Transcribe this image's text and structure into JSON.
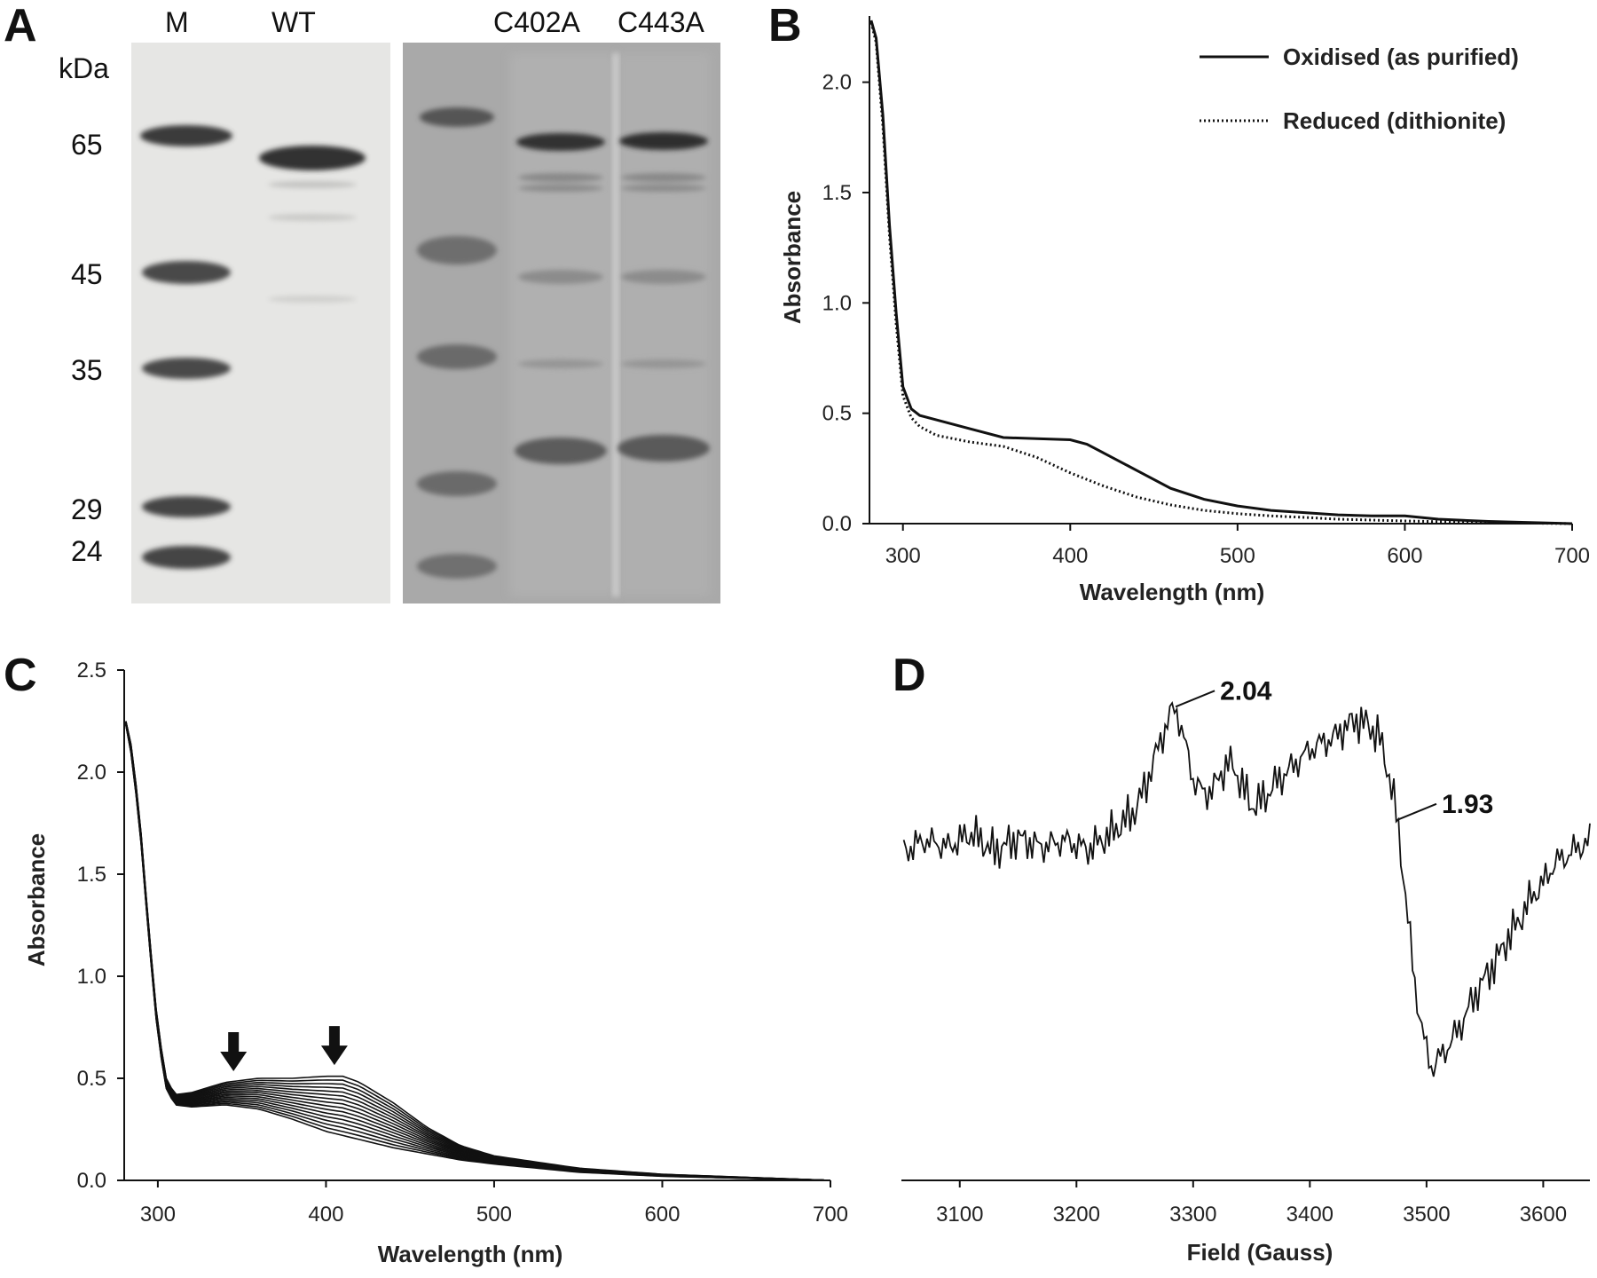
{
  "panel_letters": [
    "A",
    "B",
    "C",
    "D"
  ],
  "gel": {
    "mw_unit": "kDa",
    "lanes": [
      "M",
      "WT",
      "C402A",
      "C443A"
    ],
    "marker_kda": [
      65,
      45,
      35,
      29,
      24
    ]
  },
  "colors": {
    "ink": "#111111",
    "gel_left_bg": "#e6e6e4",
    "gel_right_bg": "#a9a9a9",
    "band_dark": "#3a3a3a"
  },
  "chart_data": [
    {
      "panel": "B",
      "type": "line",
      "xlabel": "Wavelength (nm)",
      "ylabel": "Absorbance",
      "xlim": [
        280,
        700
      ],
      "ylim": [
        0,
        2.3
      ],
      "xticks": [
        300,
        400,
        500,
        600,
        700
      ],
      "yticks": [
        0.0,
        0.5,
        1.0,
        1.5,
        2.0
      ],
      "legend_position": "top-right",
      "series": [
        {
          "name": "Oxidised (as purified)",
          "style": "solid",
          "x": [
            281,
            284,
            288,
            292,
            296,
            300,
            305,
            310,
            320,
            340,
            360,
            380,
            400,
            410,
            420,
            440,
            460,
            480,
            500,
            520,
            540,
            560,
            580,
            600,
            620,
            650,
            700
          ],
          "y": [
            2.28,
            2.2,
            1.85,
            1.35,
            0.95,
            0.62,
            0.52,
            0.49,
            0.47,
            0.43,
            0.39,
            0.385,
            0.38,
            0.36,
            0.32,
            0.24,
            0.16,
            0.11,
            0.08,
            0.06,
            0.05,
            0.04,
            0.035,
            0.035,
            0.02,
            0.01,
            0.0
          ]
        },
        {
          "name": "Reduced (dithionite)",
          "style": "dotted",
          "x": [
            281,
            284,
            288,
            292,
            296,
            300,
            305,
            310,
            320,
            340,
            360,
            380,
            400,
            420,
            440,
            460,
            480,
            500,
            520,
            540,
            560,
            600,
            650,
            700
          ],
          "y": [
            2.27,
            2.18,
            1.8,
            1.3,
            0.9,
            0.58,
            0.48,
            0.44,
            0.4,
            0.37,
            0.35,
            0.3,
            0.23,
            0.17,
            0.12,
            0.085,
            0.06,
            0.045,
            0.035,
            0.028,
            0.02,
            0.012,
            0.005,
            0.0
          ]
        }
      ]
    },
    {
      "panel": "C",
      "type": "line",
      "xlabel": "Wavelength (nm)",
      "ylabel": "Absorbance",
      "xlim": [
        280,
        700
      ],
      "ylim": [
        0,
        2.5
      ],
      "xticks": [
        300,
        400,
        500,
        600,
        700
      ],
      "yticks": [
        0.0,
        0.5,
        1.0,
        1.5,
        2.0,
        2.5
      ],
      "annotations": [
        {
          "type": "arrow-down",
          "x": 345,
          "y": 0.5
        },
        {
          "type": "arrow-down",
          "x": 405,
          "y": 0.53
        }
      ],
      "series_count": 16,
      "series_description": "family of spectra between first (oxidised) and last (reduced) traces",
      "first": {
        "x": [
          281,
          285,
          290,
          295,
          300,
          305,
          310,
          320,
          340,
          360,
          380,
          400,
          410,
          420,
          440,
          460,
          480,
          500,
          550,
          600,
          650,
          700
        ],
        "y": [
          2.25,
          2.1,
          1.7,
          1.2,
          0.75,
          0.5,
          0.42,
          0.43,
          0.48,
          0.5,
          0.5,
          0.51,
          0.51,
          0.48,
          0.38,
          0.26,
          0.17,
          0.12,
          0.06,
          0.03,
          0.015,
          0.0
        ]
      },
      "last": {
        "x": [
          281,
          285,
          290,
          295,
          300,
          305,
          310,
          320,
          340,
          360,
          380,
          400,
          410,
          420,
          440,
          460,
          480,
          500,
          550,
          600,
          650,
          700
        ],
        "y": [
          2.23,
          2.05,
          1.65,
          1.15,
          0.7,
          0.45,
          0.37,
          0.36,
          0.37,
          0.35,
          0.3,
          0.24,
          0.22,
          0.2,
          0.16,
          0.13,
          0.1,
          0.08,
          0.04,
          0.02,
          0.01,
          0.0
        ]
      }
    },
    {
      "panel": "D",
      "type": "line",
      "xlabel": "Field (Gauss)",
      "ylabel": "",
      "xlim": [
        3050,
        3640
      ],
      "ylim": [
        -1,
        1
      ],
      "xticks": [
        3100,
        3200,
        3300,
        3400,
        3500,
        3600
      ],
      "annotations": [
        {
          "label": "2.04",
          "x": 3285,
          "y": 0.74
        },
        {
          "label": "1.93",
          "x": 3475,
          "y": 0.24
        }
      ],
      "series": [
        {
          "name": "EPR spectrum",
          "x": [
            3052,
            3070,
            3090,
            3110,
            3130,
            3150,
            3170,
            3190,
            3210,
            3230,
            3250,
            3260,
            3270,
            3280,
            3285,
            3292,
            3300,
            3310,
            3320,
            3330,
            3340,
            3350,
            3360,
            3370,
            3380,
            3390,
            3400,
            3410,
            3420,
            3430,
            3440,
            3450,
            3460,
            3465,
            3470,
            3475,
            3480,
            3485,
            3490,
            3495,
            3500,
            3505,
            3510,
            3520,
            3530,
            3540,
            3550,
            3560,
            3570,
            3580,
            3590,
            3600,
            3610,
            3620,
            3630,
            3640
          ],
          "y": [
            0.1,
            0.15,
            0.12,
            0.18,
            0.1,
            0.16,
            0.12,
            0.15,
            0.11,
            0.18,
            0.28,
            0.4,
            0.56,
            0.7,
            0.74,
            0.6,
            0.42,
            0.35,
            0.4,
            0.5,
            0.42,
            0.3,
            0.33,
            0.4,
            0.45,
            0.5,
            0.55,
            0.58,
            0.6,
            0.65,
            0.68,
            0.66,
            0.6,
            0.5,
            0.38,
            0.24,
            0.0,
            -0.25,
            -0.48,
            -0.66,
            -0.78,
            -0.86,
            -0.82,
            -0.75,
            -0.66,
            -0.55,
            -0.46,
            -0.38,
            -0.28,
            -0.2,
            -0.1,
            -0.04,
            0.05,
            0.08,
            0.12,
            0.14
          ]
        }
      ]
    }
  ]
}
